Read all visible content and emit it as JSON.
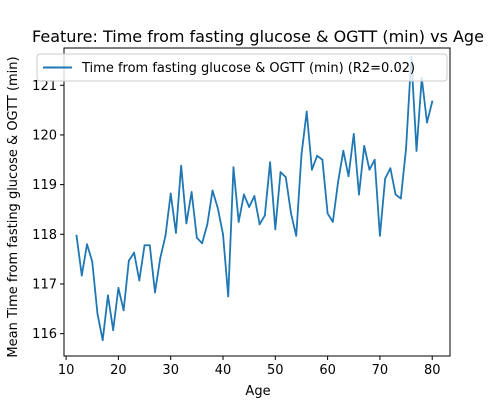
{
  "chart_data": {
    "type": "line",
    "title": "Feature: Time from fasting glucose & OGTT (min) vs Age",
    "xlabel": "Age",
    "ylabel": "Mean Time from fasting glucose & OGTT (min)",
    "xlim": [
      9.6,
      83.4
    ],
    "ylim": [
      115.55,
      121.75
    ],
    "xticks": [
      10,
      20,
      30,
      40,
      50,
      60,
      70,
      80
    ],
    "yticks": [
      116,
      117,
      118,
      119,
      120,
      121
    ],
    "grid": false,
    "legend_position": "top",
    "series": [
      {
        "name": "Time from fasting glucose & OGTT (min) (R2=0.02)",
        "color": "#1f77b4",
        "x": [
          12,
          13,
          14,
          15,
          16,
          17,
          18,
          19,
          20,
          21,
          22,
          23,
          24,
          25,
          26,
          27,
          28,
          29,
          30,
          31,
          32,
          33,
          34,
          35,
          36,
          37,
          38,
          39,
          40,
          41,
          42,
          43,
          44,
          45,
          46,
          47,
          48,
          49,
          50,
          51,
          52,
          53,
          54,
          55,
          56,
          57,
          58,
          59,
          60,
          61,
          62,
          63,
          64,
          65,
          66,
          67,
          68,
          69,
          70,
          71,
          72,
          73,
          74,
          75,
          76,
          77,
          78,
          79,
          80
        ],
        "y": [
          117.97,
          117.17,
          117.8,
          117.45,
          116.4,
          115.87,
          116.77,
          116.07,
          116.92,
          116.47,
          117.47,
          117.63,
          117.07,
          117.78,
          117.78,
          116.83,
          117.52,
          117.97,
          118.82,
          118.03,
          119.38,
          118.22,
          118.85,
          117.93,
          117.82,
          118.2,
          118.88,
          118.53,
          118.0,
          116.75,
          119.35,
          118.25,
          118.8,
          118.55,
          118.77,
          118.2,
          118.38,
          119.45,
          118.1,
          119.25,
          119.15,
          118.42,
          117.97,
          119.6,
          120.47,
          119.3,
          119.58,
          119.5,
          118.42,
          118.25,
          119.05,
          119.68,
          119.17,
          120.02,
          118.8,
          119.78,
          119.3,
          119.5,
          117.97,
          119.12,
          119.33,
          118.8,
          118.72,
          119.73,
          121.57,
          119.68,
          121.15,
          120.25,
          120.67
        ]
      }
    ]
  }
}
